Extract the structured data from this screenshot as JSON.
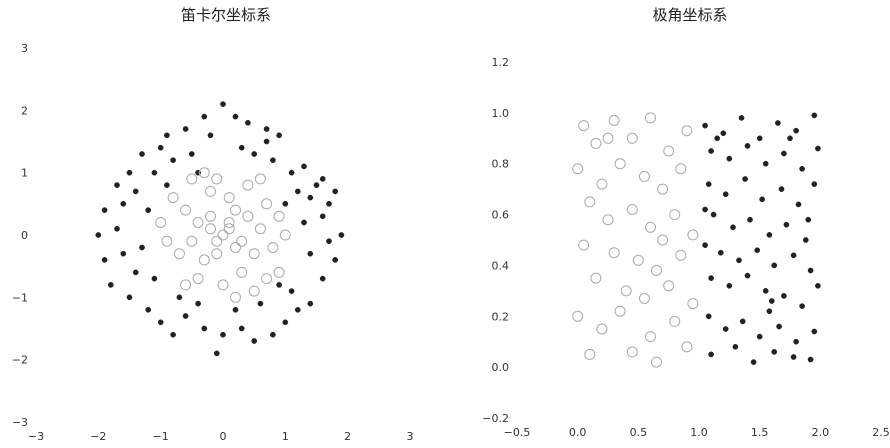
{
  "chart_data": [
    {
      "type": "scatter",
      "title": "笛卡尔坐标系",
      "xlabel": "",
      "ylabel": "",
      "xlim": [
        -3,
        3
      ],
      "ylim": [
        -3,
        3
      ],
      "xticks": [
        "−3",
        "−2",
        "−1",
        "0",
        "1",
        "2",
        "3"
      ],
      "yticks": [
        "−3",
        "−2",
        "−1",
        "0",
        "1",
        "2",
        "3"
      ],
      "grid": false,
      "series": [
        {
          "marker": "filled",
          "color": "#222222",
          "points": [
            [
              -0.9,
              1.6
            ],
            [
              -0.6,
              1.7
            ],
            [
              -0.3,
              1.9
            ],
            [
              0.0,
              2.1
            ],
            [
              0.2,
              1.9
            ],
            [
              0.4,
              1.8
            ],
            [
              0.7,
              1.7
            ],
            [
              0.9,
              1.6
            ],
            [
              -1.3,
              1.3
            ],
            [
              -1.0,
              1.4
            ],
            [
              -1.5,
              1.0
            ],
            [
              -1.7,
              0.8
            ],
            [
              -1.4,
              0.7
            ],
            [
              -1.1,
              1.0
            ],
            [
              -0.8,
              1.2
            ],
            [
              -0.5,
              1.3
            ],
            [
              0.5,
              1.3
            ],
            [
              0.8,
              1.2
            ],
            [
              1.1,
              1.0
            ],
            [
              1.3,
              1.1
            ],
            [
              1.5,
              0.8
            ],
            [
              1.7,
              0.5
            ],
            [
              1.6,
              0.9
            ],
            [
              1.2,
              0.7
            ],
            [
              -1.9,
              0.4
            ],
            [
              -2.0,
              0.0
            ],
            [
              -1.9,
              -0.4
            ],
            [
              -1.6,
              -0.3
            ],
            [
              -1.8,
              -0.8
            ],
            [
              -1.5,
              -1.0
            ],
            [
              -1.2,
              -1.2
            ],
            [
              -1.4,
              -0.6
            ],
            [
              -1.0,
              -1.4
            ],
            [
              -0.8,
              -1.6
            ],
            [
              -0.6,
              -1.3
            ],
            [
              -0.3,
              -1.5
            ],
            [
              -0.1,
              -1.9
            ],
            [
              0.0,
              -1.6
            ],
            [
              0.3,
              -1.5
            ],
            [
              0.5,
              -1.7
            ],
            [
              0.8,
              -1.6
            ],
            [
              1.0,
              -1.4
            ],
            [
              1.2,
              -1.2
            ],
            [
              1.4,
              -1.1
            ],
            [
              1.1,
              -0.9
            ],
            [
              1.6,
              -0.7
            ],
            [
              1.8,
              -0.4
            ],
            [
              1.9,
              0.0
            ],
            [
              1.7,
              -0.1
            ],
            [
              1.4,
              -0.3
            ],
            [
              1.3,
              0.2
            ],
            [
              1.6,
              0.3
            ],
            [
              -1.6,
              0.5
            ],
            [
              -1.2,
              0.4
            ],
            [
              -1.1,
              -0.7
            ],
            [
              -0.7,
              -1.0
            ],
            [
              0.6,
              -1.1
            ],
            [
              0.9,
              -0.8
            ],
            [
              1.0,
              0.5
            ],
            [
              -0.9,
              0.8
            ],
            [
              -0.4,
              1.0
            ],
            [
              0.3,
              1.4
            ],
            [
              1.4,
              0.6
            ],
            [
              -1.3,
              -0.2
            ],
            [
              0.2,
              -1.2
            ],
            [
              -0.4,
              -1.1
            ],
            [
              1.8,
              0.7
            ],
            [
              -1.7,
              0.1
            ],
            [
              0.7,
              1.5
            ],
            [
              -0.2,
              1.6
            ]
          ]
        },
        {
          "marker": "hollow",
          "color": "#aaaaaa",
          "points": [
            [
              0.0,
              0.0
            ],
            [
              0.1,
              0.2
            ],
            [
              -0.2,
              0.1
            ],
            [
              0.3,
              -0.1
            ],
            [
              -0.1,
              -0.3
            ],
            [
              0.2,
              0.4
            ],
            [
              -0.4,
              0.2
            ],
            [
              0.4,
              0.3
            ],
            [
              -0.3,
              -0.4
            ],
            [
              0.5,
              -0.3
            ],
            [
              -0.5,
              -0.1
            ],
            [
              0.1,
              0.6
            ],
            [
              -0.2,
              0.7
            ],
            [
              0.6,
              0.1
            ],
            [
              -0.6,
              0.4
            ],
            [
              0.3,
              -0.6
            ],
            [
              -0.4,
              -0.7
            ],
            [
              0.7,
              0.5
            ],
            [
              -0.7,
              -0.3
            ],
            [
              0.0,
              -0.8
            ],
            [
              0.8,
              -0.2
            ],
            [
              -0.8,
              0.6
            ],
            [
              0.4,
              0.8
            ],
            [
              -0.1,
              0.9
            ],
            [
              0.9,
              0.3
            ],
            [
              -0.9,
              -0.1
            ],
            [
              0.5,
              -0.9
            ],
            [
              -0.6,
              -0.8
            ],
            [
              0.2,
              -1.0
            ],
            [
              0.9,
              -0.6
            ],
            [
              -0.3,
              1.0
            ],
            [
              0.6,
              0.9
            ],
            [
              -1.0,
              0.2
            ],
            [
              1.0,
              0.0
            ],
            [
              -0.5,
              0.9
            ],
            [
              0.7,
              -0.7
            ],
            [
              0.1,
              0.1
            ],
            [
              -0.1,
              -0.1
            ],
            [
              0.2,
              -0.2
            ],
            [
              -0.2,
              0.3
            ]
          ]
        }
      ]
    },
    {
      "type": "scatter",
      "title": "极角坐标系",
      "xlabel": "",
      "ylabel": "",
      "xlim": [
        -0.5,
        2.5
      ],
      "ylim": [
        -0.2,
        1.2
      ],
      "xticks": [
        "−0.5",
        "0.0",
        "0.5",
        "1.0",
        "1.5",
        "2.0",
        "2.5"
      ],
      "yticks": [
        "−0.2",
        "0.0",
        "0.2",
        "0.4",
        "0.6",
        "0.8",
        "1.0",
        "1.2"
      ],
      "grid": false,
      "series": [
        {
          "marker": "hollow",
          "color": "#aaaaaa",
          "points": [
            [
              0.05,
              0.95
            ],
            [
              0.15,
              0.88
            ],
            [
              0.3,
              0.97
            ],
            [
              0.45,
              0.9
            ],
            [
              0.6,
              0.98
            ],
            [
              0.75,
              0.85
            ],
            [
              0.9,
              0.93
            ],
            [
              0.0,
              0.78
            ],
            [
              0.2,
              0.72
            ],
            [
              0.35,
              0.8
            ],
            [
              0.55,
              0.75
            ],
            [
              0.7,
              0.7
            ],
            [
              0.85,
              0.78
            ],
            [
              0.1,
              0.65
            ],
            [
              0.25,
              0.58
            ],
            [
              0.45,
              0.62
            ],
            [
              0.6,
              0.55
            ],
            [
              0.8,
              0.6
            ],
            [
              0.95,
              0.52
            ],
            [
              0.05,
              0.48
            ],
            [
              0.3,
              0.45
            ],
            [
              0.5,
              0.42
            ],
            [
              0.65,
              0.38
            ],
            [
              0.85,
              0.44
            ],
            [
              0.15,
              0.35
            ],
            [
              0.4,
              0.3
            ],
            [
              0.55,
              0.27
            ],
            [
              0.75,
              0.32
            ],
            [
              0.95,
              0.25
            ],
            [
              0.0,
              0.2
            ],
            [
              0.2,
              0.15
            ],
            [
              0.35,
              0.22
            ],
            [
              0.6,
              0.12
            ],
            [
              0.8,
              0.18
            ],
            [
              0.1,
              0.05
            ],
            [
              0.45,
              0.06
            ],
            [
              0.65,
              0.02
            ],
            [
              0.9,
              0.08
            ],
            [
              0.25,
              0.9
            ],
            [
              0.7,
              0.5
            ]
          ]
        },
        {
          "marker": "filled",
          "color": "#222222",
          "points": [
            [
              1.05,
              0.95
            ],
            [
              1.2,
              0.92
            ],
            [
              1.35,
              0.98
            ],
            [
              1.5,
              0.9
            ],
            [
              1.65,
              0.96
            ],
            [
              1.8,
              0.93
            ],
            [
              1.95,
              0.99
            ],
            [
              1.1,
              0.85
            ],
            [
              1.25,
              0.82
            ],
            [
              1.4,
              0.87
            ],
            [
              1.55,
              0.8
            ],
            [
              1.7,
              0.84
            ],
            [
              1.85,
              0.78
            ],
            [
              1.98,
              0.86
            ],
            [
              1.08,
              0.72
            ],
            [
              1.22,
              0.68
            ],
            [
              1.38,
              0.74
            ],
            [
              1.52,
              0.66
            ],
            [
              1.68,
              0.7
            ],
            [
              1.82,
              0.64
            ],
            [
              1.95,
              0.72
            ],
            [
              1.12,
              0.6
            ],
            [
              1.28,
              0.55
            ],
            [
              1.42,
              0.58
            ],
            [
              1.58,
              0.52
            ],
            [
              1.72,
              0.56
            ],
            [
              1.88,
              0.5
            ],
            [
              1.05,
              0.48
            ],
            [
              1.18,
              0.45
            ],
            [
              1.33,
              0.42
            ],
            [
              1.48,
              0.46
            ],
            [
              1.62,
              0.4
            ],
            [
              1.78,
              0.44
            ],
            [
              1.92,
              0.38
            ],
            [
              1.1,
              0.35
            ],
            [
              1.25,
              0.32
            ],
            [
              1.4,
              0.36
            ],
            [
              1.55,
              0.3
            ],
            [
              1.6,
              0.26
            ],
            [
              1.58,
              0.22
            ],
            [
              1.7,
              0.28
            ],
            [
              1.85,
              0.24
            ],
            [
              1.98,
              0.32
            ],
            [
              1.08,
              0.2
            ],
            [
              1.22,
              0.15
            ],
            [
              1.36,
              0.18
            ],
            [
              1.5,
              0.12
            ],
            [
              1.66,
              0.16
            ],
            [
              1.8,
              0.1
            ],
            [
              1.95,
              0.14
            ],
            [
              1.1,
              0.05
            ],
            [
              1.3,
              0.08
            ],
            [
              1.45,
              0.02
            ],
            [
              1.62,
              0.06
            ],
            [
              1.78,
              0.04
            ],
            [
              1.92,
              0.03
            ],
            [
              1.05,
              0.62
            ],
            [
              1.15,
              0.9
            ],
            [
              1.75,
              0.9
            ],
            [
              1.9,
              0.58
            ]
          ]
        }
      ]
    }
  ]
}
